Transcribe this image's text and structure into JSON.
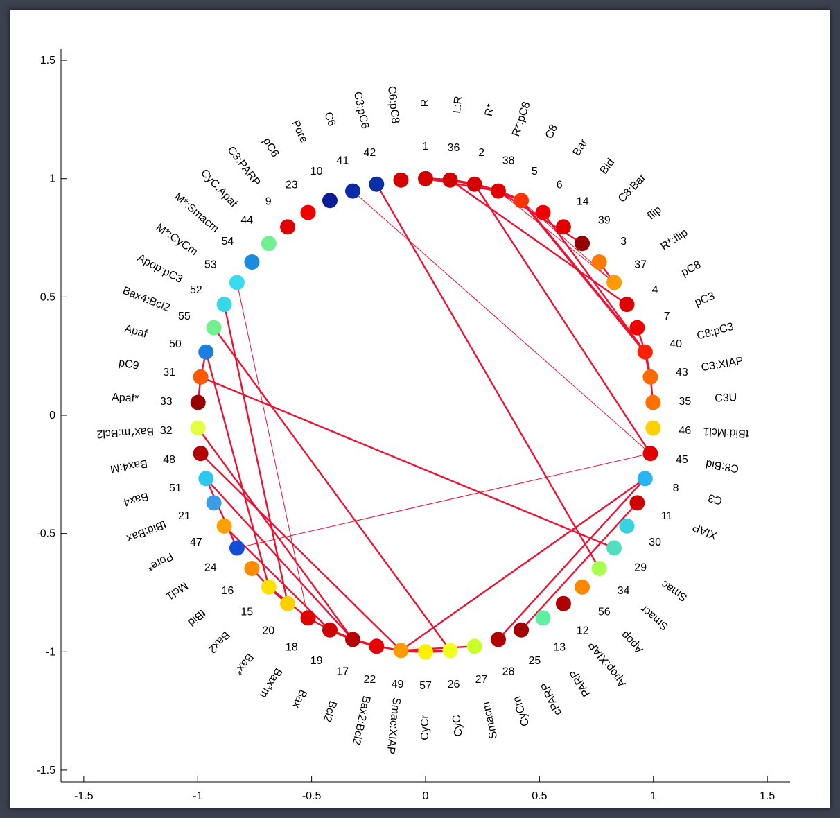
{
  "chart_data": {
    "type": "scatter",
    "title": "",
    "xlabel": "",
    "ylabel": "",
    "xlim": [
      -1.6,
      1.6
    ],
    "ylim": [
      -1.55,
      1.55
    ],
    "x_ticks": [
      "-1.5",
      "-1",
      "-0.5",
      "0",
      "0.5",
      "1",
      "1.5"
    ],
    "y_ticks": [
      "-1.5",
      "-1",
      "-0.5",
      "0",
      "0.5",
      "1",
      "1.5"
    ],
    "x_tick_values": [
      -1.5,
      -1,
      -0.5,
      0,
      0.5,
      1,
      1.5
    ],
    "y_tick_values": [
      -1.5,
      -1,
      -0.5,
      0,
      0.5,
      1,
      1.5
    ],
    "nodes": [
      {
        "num": "1",
        "name": "R",
        "color": "#d40000"
      },
      {
        "num": "36",
        "name": "L:R",
        "color": "#d40000"
      },
      {
        "num": "2",
        "name": "R*",
        "color": "#d40000"
      },
      {
        "num": "38",
        "name": "R*:pC8",
        "color": "#e00000"
      },
      {
        "num": "5",
        "name": "C8",
        "color": "#ff3300"
      },
      {
        "num": "6",
        "name": "Bar",
        "color": "#f00000"
      },
      {
        "num": "14",
        "name": "Bid",
        "color": "#e00000"
      },
      {
        "num": "39",
        "name": "C8:Bar",
        "color": "#960000"
      },
      {
        "num": "3",
        "name": "flip",
        "color": "#ff7a00"
      },
      {
        "num": "37",
        "name": "R*:flip",
        "color": "#ff9a00"
      },
      {
        "num": "4",
        "name": "pC8",
        "color": "#e00000"
      },
      {
        "num": "7",
        "name": "pC3",
        "color": "#f00000"
      },
      {
        "num": "40",
        "name": "C8:pC3",
        "color": "#ff2000"
      },
      {
        "num": "43",
        "name": "C3:XIAP",
        "color": "#ff6a00"
      },
      {
        "num": "35",
        "name": "C3U",
        "color": "#ff7000"
      },
      {
        "num": "46",
        "name": "tBid:Mcl1",
        "color": "#ffd000"
      },
      {
        "num": "45",
        "name": "C8:Bid",
        "color": "#e00000"
      },
      {
        "num": "8",
        "name": "C3",
        "color": "#28b4f5"
      },
      {
        "num": "11",
        "name": "XIAP",
        "color": "#d00000"
      },
      {
        "num": "30",
        "name": "",
        "color": "#38d2e0"
      },
      {
        "num": "29",
        "name": "Smac",
        "color": "#52dfc0"
      },
      {
        "num": "34",
        "name": "Smacr",
        "color": "#a8ff52"
      },
      {
        "num": "56",
        "name": "Apop",
        "color": "#ff8800"
      },
      {
        "num": "12",
        "name": "Apop:XIAP",
        "color": "#b00000"
      },
      {
        "num": "13",
        "name": "PARP",
        "color": "#5ef0a0"
      },
      {
        "num": "25",
        "name": "cPARP",
        "color": "#a00000"
      },
      {
        "num": "28",
        "name": "CyCm",
        "color": "#b00000"
      },
      {
        "num": "27",
        "name": "Smacm",
        "color": "#c8ff2c"
      },
      {
        "num": "26",
        "name": "CyC",
        "color": "#f0ff20"
      },
      {
        "num": "57",
        "name": "CyCr",
        "color": "#ffef00"
      },
      {
        "num": "49",
        "name": "Smac:XIAP",
        "color": "#ff9a00"
      },
      {
        "num": "22",
        "name": "Bax2:Bcl2",
        "color": "#e80000"
      },
      {
        "num": "17",
        "name": "Bcl2",
        "color": "#b80000"
      },
      {
        "num": "19",
        "name": "Bax",
        "color": "#d00000"
      },
      {
        "num": "18",
        "name": "Bax*m",
        "color": "#e00000"
      },
      {
        "num": "20",
        "name": "Bax*",
        "color": "#ffd000"
      },
      {
        "num": "15",
        "name": "Bax2",
        "color": "#ffe000"
      },
      {
        "num": "16",
        "name": "tBid",
        "color": "#ff8c00"
      },
      {
        "num": "24",
        "name": "Mcl1",
        "color": "#1050d8"
      },
      {
        "num": "47",
        "name": "Pore*",
        "color": "#ffa000"
      },
      {
        "num": "21",
        "name": "tBid:Bax",
        "color": "#3c9ce8"
      },
      {
        "num": "51",
        "name": "Bax4",
        "color": "#2cc8f0"
      },
      {
        "num": "48",
        "name": "Bax4:M",
        "color": "#b40000"
      },
      {
        "num": "32",
        "name": "Bax*m:Bcl2",
        "color": "#e4ff40"
      },
      {
        "num": "33",
        "name": "Apaf*",
        "color": "#960000"
      },
      {
        "num": "31",
        "name": "pC9",
        "color": "#ff5800"
      },
      {
        "num": "50",
        "name": "Apaf",
        "color": "#1c7fe0"
      },
      {
        "num": "55",
        "name": "Bax4:Bcl2",
        "color": "#70f090"
      },
      {
        "num": "52",
        "name": "Apop:pC3",
        "color": "#34d8e8"
      },
      {
        "num": "53",
        "name": "M*:CyCm",
        "color": "#38dcf0"
      },
      {
        "num": "54",
        "name": "M*:Smacm",
        "color": "#1a8ce0"
      },
      {
        "num": "44",
        "name": "CyC:Apaf",
        "color": "#70f090"
      },
      {
        "num": "9",
        "name": "C3:PARP",
        "color": "#e00000"
      },
      {
        "num": "23",
        "name": "pC6",
        "color": "#f00000"
      },
      {
        "num": "10",
        "name": "Pore",
        "color": "#0a1c98"
      },
      {
        "num": "41",
        "name": "C6",
        "color": "#0a2aa8"
      },
      {
        "num": "42",
        "name": "C3:pC6",
        "color": "#0a30a8"
      },
      {
        "num": "",
        "name": "C6:pC8",
        "color": "#d40000"
      }
    ]
  }
}
